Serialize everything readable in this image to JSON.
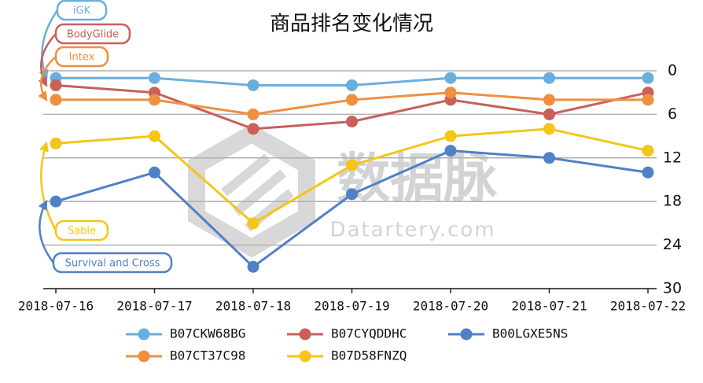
{
  "chart_data": {
    "type": "line",
    "title": "商品排名变化情况",
    "categories": [
      "2018-07-16",
      "2018-07-17",
      "2018-07-18",
      "2018-07-19",
      "2018-07-20",
      "2018-07-21",
      "2018-07-22"
    ],
    "series": [
      {
        "name": "B07CKW68BG",
        "color": "#6aaede",
        "values": [
          1,
          1,
          2,
          2,
          1,
          1,
          1
        ]
      },
      {
        "name": "B07CYQDDHC",
        "color": "#c9605a",
        "values": [
          2,
          3,
          8,
          7,
          4,
          6,
          3
        ]
      },
      {
        "name": "B00LGXE5NS",
        "color": "#5081c6",
        "values": [
          18,
          14,
          27,
          17,
          11,
          12,
          14
        ]
      },
      {
        "name": "B07CT37C98",
        "color": "#ee9040",
        "values": [
          4,
          4,
          6,
          4,
          3,
          4,
          4
        ]
      },
      {
        "name": "B07D58FNZQ",
        "color": "#f5c518",
        "values": [
          10,
          9,
          21,
          13,
          9,
          8,
          11
        ]
      }
    ],
    "ylim": [
      30,
      0
    ],
    "yticks": [
      0,
      6,
      12,
      18,
      24,
      30
    ],
    "y_axis_side": "right",
    "grid": true,
    "annotations": [
      {
        "text": "iGK",
        "color": "#6aaede"
      },
      {
        "text": "BodyGlide",
        "color": "#c9605a"
      },
      {
        "text": "Intex",
        "color": "#ee9040"
      },
      {
        "text": "Sable",
        "color": "#f5c518"
      },
      {
        "text": "Survival and Cross",
        "color": "#5081c6"
      }
    ],
    "watermark": {
      "title": "数据脉",
      "subtitle": "Datartery.com"
    }
  }
}
